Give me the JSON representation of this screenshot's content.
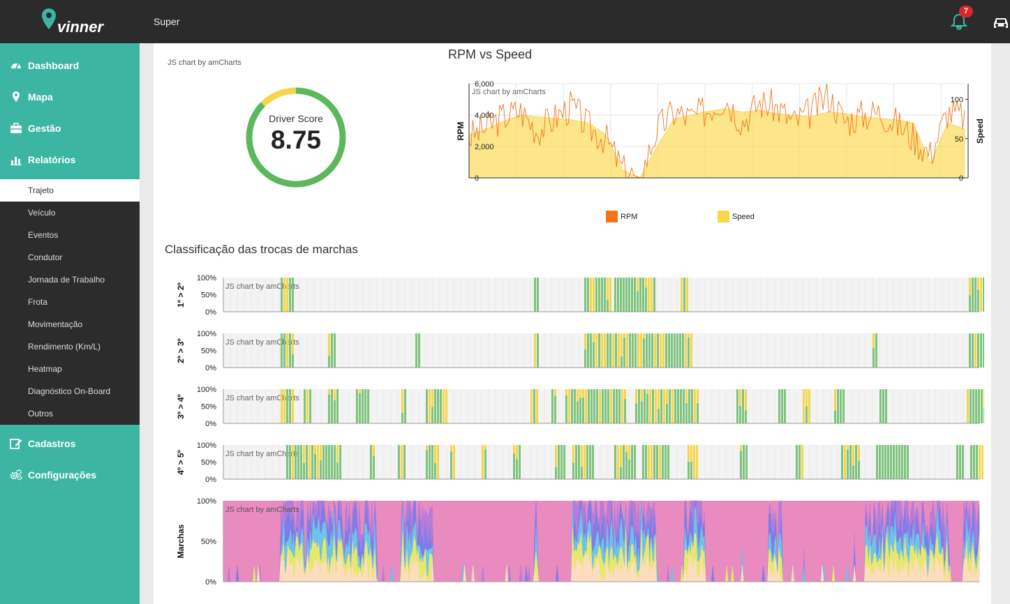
{
  "header": {
    "brand": "vinner",
    "user": "Super",
    "notifications_count": "7",
    "bell_icon": "bell-icon",
    "car_icon": "car-icon"
  },
  "sidebar": {
    "items": [
      {
        "label": "Dashboard",
        "icon": "dashboard-icon"
      },
      {
        "label": "Mapa",
        "icon": "map-marker-icon"
      },
      {
        "label": "Gestão",
        "icon": "briefcase-icon"
      },
      {
        "label": "Relatórios",
        "icon": "bar-chart-icon"
      }
    ],
    "submenu": [
      "Trajeto",
      "Veículo",
      "Eventos",
      "Condutor",
      "Jornada de Trabalho",
      "Frota",
      "Movimentação",
      "Rendimento (Km/L)",
      "Heatmap",
      "Diagnóstico On-Board",
      "Outros"
    ],
    "active_submenu": "Trajeto",
    "bottom_items": [
      {
        "label": "Cadastros",
        "icon": "edit-icon"
      },
      {
        "label": "Configurações",
        "icon": "cogs-icon"
      }
    ]
  },
  "colors": {
    "accent": "#3cb6a3",
    "dark": "#2b2b2b",
    "score_green": "#5cb85c",
    "score_yellow": "#f5d64a",
    "rpm": "#f4741c",
    "speed": "#fbd84a"
  },
  "credit": "JS chart by amCharts",
  "driver_score": {
    "label": "Driver Score",
    "value": "8.75",
    "score": 8.75,
    "max": 10
  },
  "rpm_chart": {
    "title": "RPM vs Speed",
    "left_axis": {
      "label": "RPM",
      "ticks": [
        "0",
        "2,000",
        "4,000",
        "6,000"
      ]
    },
    "right_axis": {
      "label": "Speed",
      "ticks": [
        "0",
        "50",
        "100"
      ]
    },
    "legend": [
      {
        "name": "RPM",
        "color": "#f4741c"
      },
      {
        "name": "Speed",
        "color": "#fbd84a"
      }
    ]
  },
  "gear_section": {
    "title": "Classificação das trocas de marchas",
    "ticks": [
      "100%",
      "50%",
      "0%"
    ],
    "charts": [
      {
        "label": "1º > 2º"
      },
      {
        "label": "2º > 3º"
      },
      {
        "label": "3º > 4º"
      },
      {
        "label": "4º > 5º"
      },
      {
        "label": "Marchas"
      }
    ]
  },
  "chart_data": [
    {
      "type": "gauge",
      "title": "Driver Score",
      "value": 8.75,
      "max": 10
    },
    {
      "type": "area",
      "title": "RPM vs Speed",
      "series": [
        {
          "name": "RPM",
          "axis": "left",
          "range": [
            0,
            6000
          ],
          "profile": [
            2600,
            3200,
            3900,
            4300,
            3000,
            3800,
            4600,
            3200,
            2500,
            500,
            0,
            3100,
            4200,
            3800,
            4400,
            5100,
            3600,
            4800,
            4500,
            3500,
            4200,
            5300,
            3600,
            4000,
            4200,
            3500,
            2600,
            1500,
            4200,
            3900
          ]
        },
        {
          "name": "Speed",
          "axis": "right",
          "range": [
            0,
            120
          ],
          "profile": [
            55,
            62,
            72,
            80,
            78,
            76,
            74,
            70,
            55,
            10,
            0,
            40,
            75,
            80,
            85,
            88,
            84,
            86,
            82,
            80,
            78,
            84,
            82,
            78,
            76,
            74,
            70,
            18,
            70,
            62
          ]
        }
      ]
    }
  ]
}
